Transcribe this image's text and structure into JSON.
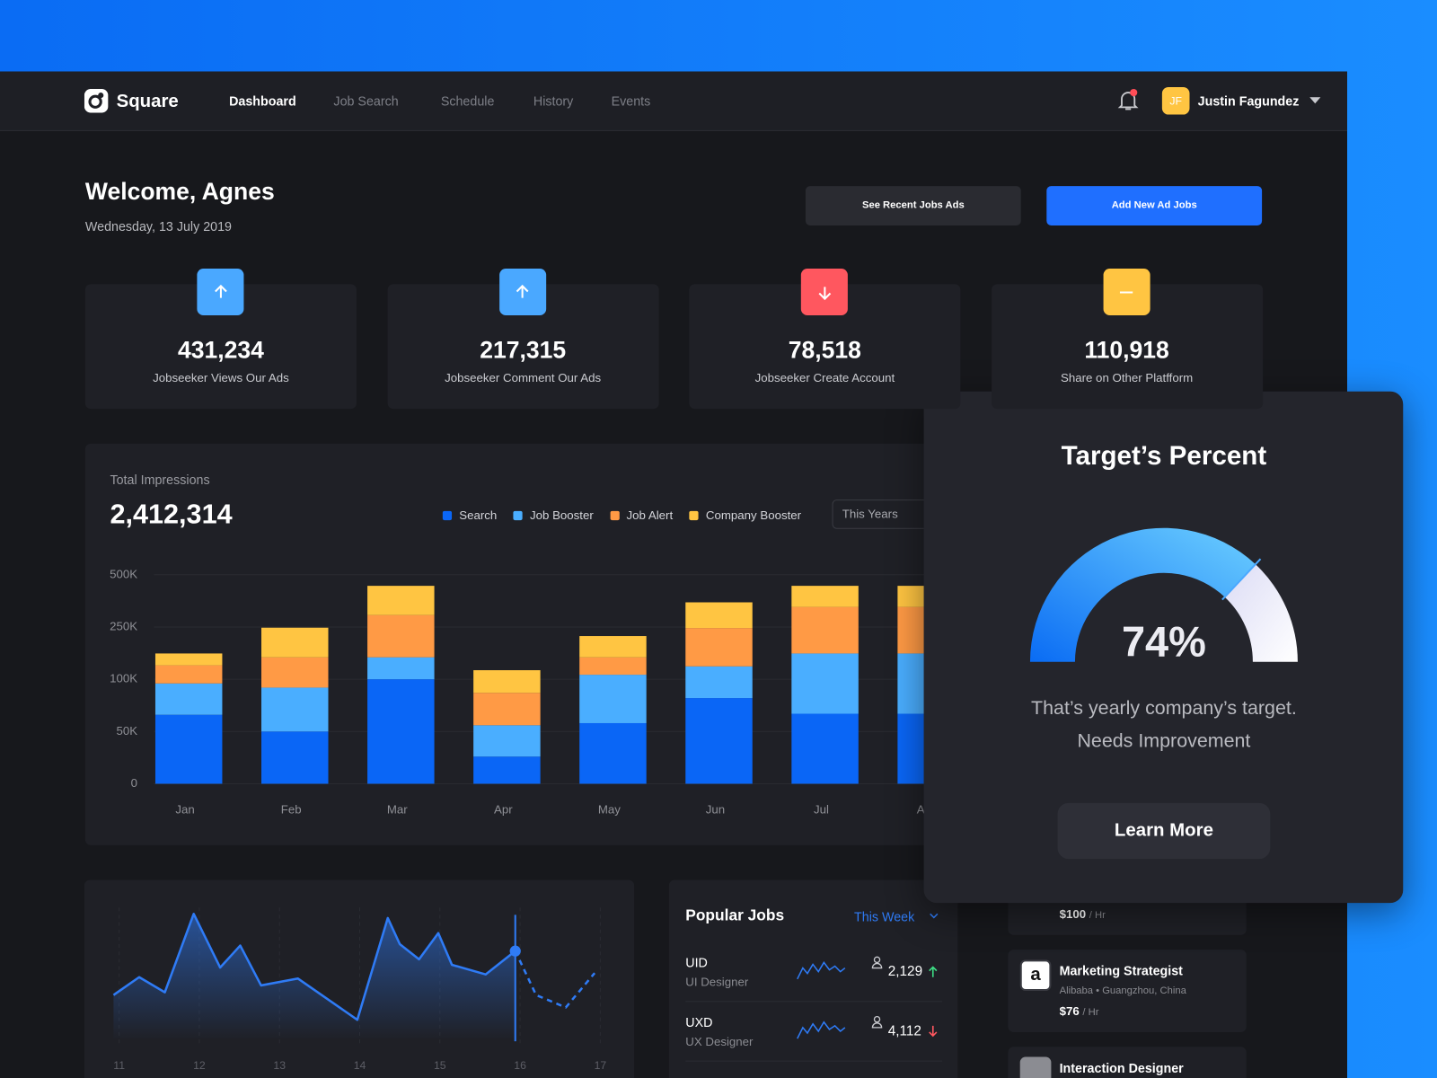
{
  "nav": {
    "brand": "Square",
    "links": [
      "Dashboard",
      "Job Search",
      "Schedule",
      "History",
      "Events"
    ],
    "user_initials": "JF",
    "user_name": "Justin Fagundez"
  },
  "header": {
    "title": "Welcome, Agnes",
    "date": "Wednesday, 13 July 2019",
    "buttons": [
      "See Recent Jobs Ads",
      "Add New Ad Jobs"
    ]
  },
  "stats": [
    {
      "value": "431,234",
      "label": "Jobseeker Views Our Ads",
      "trend": "up"
    },
    {
      "value": "217,315",
      "label": "Jobseeker Comment Our Ads",
      "trend": "up"
    },
    {
      "value": "78,518",
      "label": "Jobseeker Create Account",
      "trend": "down"
    },
    {
      "value": "110,918",
      "label": "Share on Other Platfform",
      "trend": "flat"
    }
  ],
  "chart_data": [
    {
      "type": "bar",
      "stacked": true,
      "title": "Total Impressions",
      "total": "2,412,314",
      "filter": "This Years",
      "categories": [
        "Jan",
        "Feb",
        "Mar",
        "Apr",
        "May",
        "Jun",
        "Jul",
        "Aug"
      ],
      "series": [
        {
          "name": "Search",
          "color": "#0a66f6",
          "values": [
            66000,
            50000,
            100000,
            26000,
            58000,
            82000,
            67000,
            67000
          ]
        },
        {
          "name": "Job Booster",
          "color": "#4aaeff",
          "values": [
            30000,
            42000,
            63000,
            30000,
            55000,
            55000,
            107000,
            107000
          ]
        },
        {
          "name": "Job Alert",
          "color": "#ff9a45",
          "values": [
            44000,
            71000,
            144000,
            31000,
            50000,
            110000,
            172000,
            172000
          ]
        },
        {
          "name": "Company Booster",
          "color": "#ffc542",
          "values": [
            34000,
            85000,
            140000,
            39000,
            61000,
            121000,
            101000,
            101000
          ]
        }
      ],
      "ylim": [
        0,
        500000
      ],
      "yticks": [
        0,
        {
          "value": 50000,
          "label": "50K"
        },
        {
          "value": 100000,
          "label": "100K"
        },
        {
          "value": 250000,
          "label": "250K"
        },
        {
          "value": 500000,
          "label": "500K"
        }
      ],
      "grid": true
    },
    {
      "type": "line",
      "x": [
        10.93,
        11.25,
        11.57,
        11.93,
        12.26,
        12.51,
        12.77,
        13.23,
        13.97,
        14.35,
        14.5,
        14.74,
        14.98,
        15.15,
        15.57,
        15.94,
        16.2,
        16.57,
        16.93
      ],
      "series": [
        {
          "color": "#2f7bf5",
          "line_style": "solid",
          "fill": "area",
          "values": [
            33,
            46,
            35,
            92,
            53,
            69,
            40,
            45,
            15,
            89,
            70,
            59,
            78,
            55,
            48,
            65,
            null,
            null,
            null
          ]
        },
        {
          "color": "#2f7bf5",
          "line_style": "dashed",
          "values": [
            null,
            null,
            null,
            null,
            null,
            null,
            null,
            null,
            null,
            null,
            null,
            null,
            null,
            null,
            null,
            65,
            33,
            24,
            49
          ]
        }
      ],
      "xlim": [
        10.9,
        17
      ],
      "xticks": [
        11,
        12,
        13,
        14,
        15,
        16,
        17
      ],
      "ylim": [
        0,
        100
      ]
    },
    {
      "type": "gauge",
      "title": "Target’s Percent",
      "values": [
        74
      ],
      "value_labels": [
        "74%"
      ],
      "ylim": [
        0,
        100
      ],
      "caption": [
        "That’s yearly company’s target.",
        "Needs Improvement"
      ],
      "button": "Learn More"
    }
  ],
  "popular_jobs": {
    "title": "Popular Jobs",
    "filter": "This Week",
    "rows": [
      {
        "code": "UID",
        "role": "UI Designer",
        "count": "2,129",
        "trend": "up"
      },
      {
        "code": "UXD",
        "role": "UX Designer",
        "count": "4,112",
        "trend": "down"
      }
    ]
  },
  "job_cards": [
    {
      "rate": "$100",
      "unit": "/ Hr"
    },
    {
      "logo": "a",
      "title": "Marketing Strategist",
      "company": "Alibaba • Guangzhou, China",
      "rate": "$76",
      "unit": "/ Hr"
    },
    {
      "title": "Interaction Designer"
    }
  ]
}
